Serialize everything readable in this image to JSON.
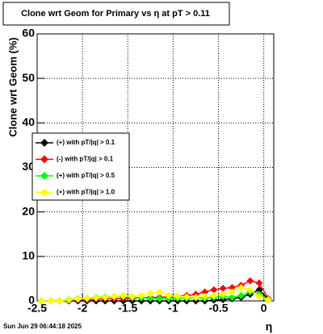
{
  "chart_data": {
    "type": "line",
    "title": "Clone wrt Geom for Primary vs   η at pT > 0.11",
    "x_label": "η",
    "y_label": "Clone wrt Geom (%)",
    "timestamp": "Sun Jun 29 06:44:18 2025",
    "x": [
      -2.45,
      -2.35,
      -2.25,
      -2.15,
      -2.05,
      -1.95,
      -1.85,
      -1.75,
      -1.65,
      -1.55,
      -1.45,
      -1.35,
      -1.25,
      -1.15,
      -1.05,
      -0.95,
      -0.85,
      -0.75,
      -0.65,
      -0.55,
      -0.45,
      -0.35,
      -0.25,
      -0.15,
      -0.05,
      0.05
    ],
    "series": [
      {
        "name": "(+) with pT/|q| > 0.1",
        "color": "#000000",
        "values": [
          0,
          0,
          0,
          0,
          0,
          0,
          0,
          0,
          0,
          0,
          0,
          0,
          0,
          0,
          0,
          0,
          0,
          0,
          0,
          0.2,
          0.3,
          0.5,
          0.8,
          1.5,
          2.5,
          0.3
        ]
      },
      {
        "name": "(-) with pT/|q| > 0.1",
        "color": "#ff0000",
        "values": [
          0,
          0,
          0,
          0.2,
          0.3,
          0.3,
          0.4,
          0.5,
          0.5,
          0.6,
          0.6,
          0.7,
          0.8,
          0.8,
          0.9,
          1,
          1.2,
          1.5,
          2,
          2.5,
          2.8,
          3,
          3.5,
          4.5,
          4,
          0.5
        ]
      },
      {
        "name": "(+) with pT/|q| > 0.5",
        "color": "#00ff00",
        "values": [
          0,
          0,
          0,
          0.3,
          0.5,
          0.6,
          0.8,
          0.9,
          1,
          1,
          0.8,
          0.7,
          0.6,
          0.5,
          0.5,
          0.6,
          0.6,
          0.7,
          0.6,
          0.8,
          1,
          0.8,
          1.2,
          2,
          1.5,
          0.3
        ]
      },
      {
        "name": "(+) with pT/|q| > 1.0",
        "color": "#ffff00",
        "values": [
          0,
          0,
          0,
          0.2,
          0.4,
          0.6,
          0.7,
          0.8,
          1,
          1.2,
          1,
          1.2,
          1.6,
          2,
          1.2,
          1,
          0.9,
          0.8,
          1,
          1.2,
          1.5,
          2,
          3,
          2.5,
          1,
          0.2
        ]
      }
    ],
    "xlim": [
      -2.5,
      0.11
    ],
    "ylim": [
      0,
      60
    ],
    "xticks": [
      -2.5,
      -2,
      -1.5,
      -1,
      -0.5,
      0
    ],
    "yticks": [
      0,
      10,
      20,
      30,
      40,
      50,
      60
    ],
    "grid": true
  }
}
